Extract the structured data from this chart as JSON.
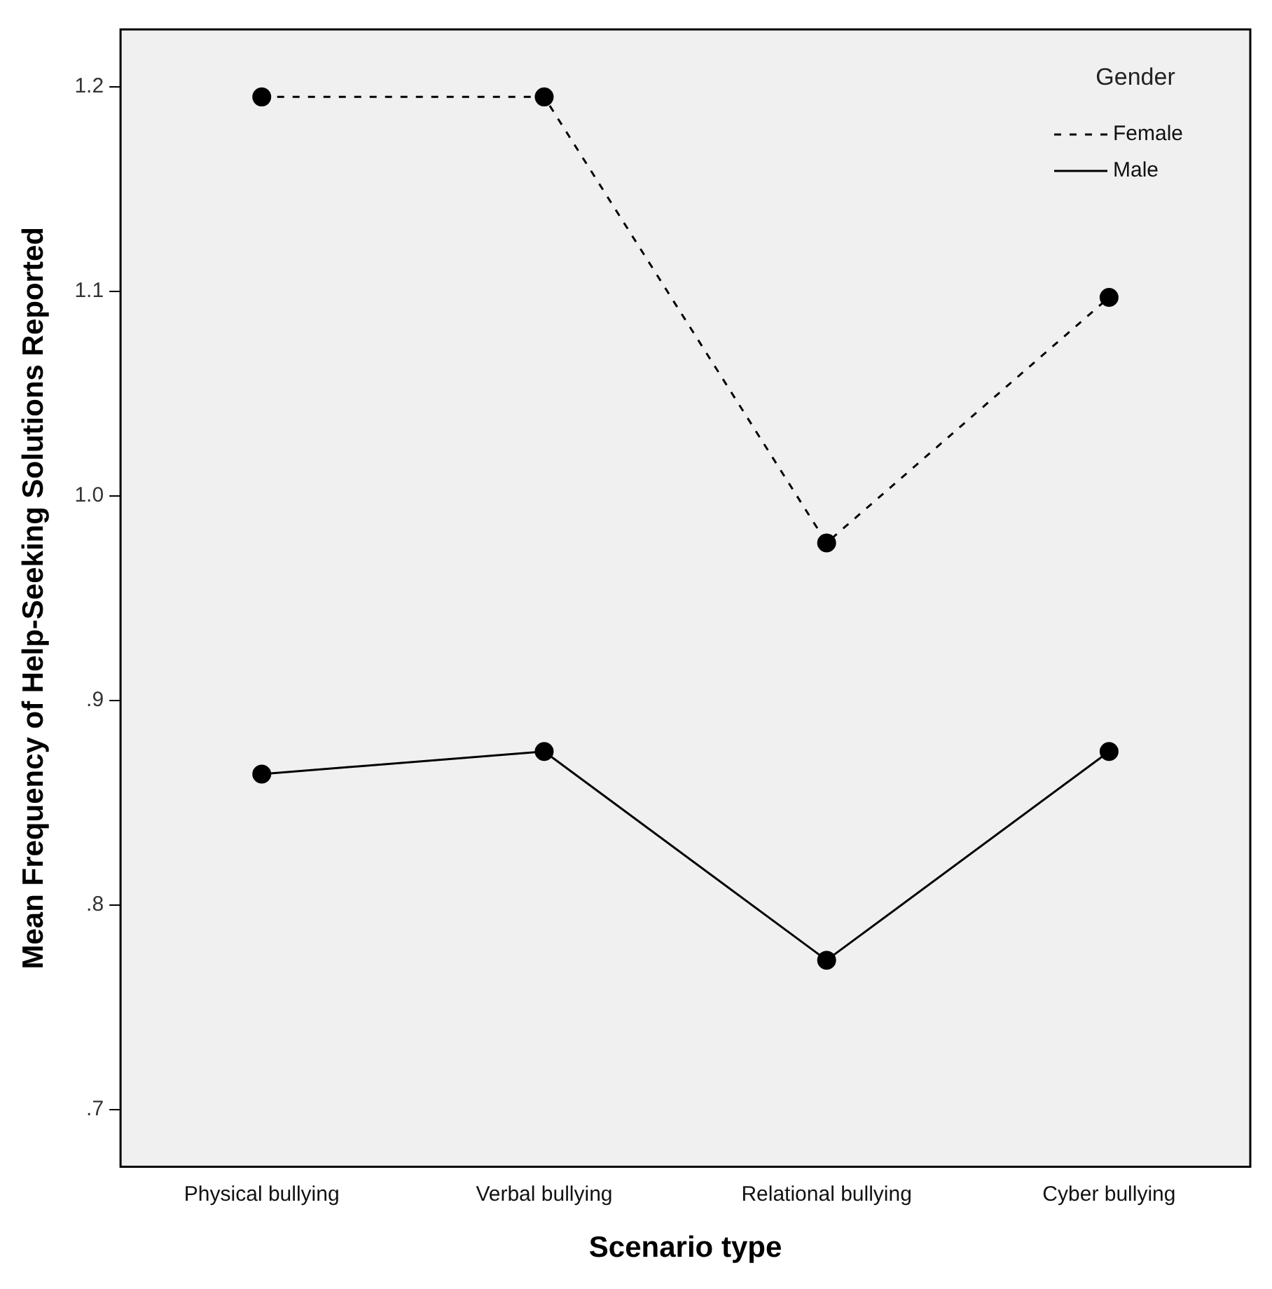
{
  "chart_data": {
    "type": "line",
    "xlabel": "Scenario type",
    "ylabel": "Mean Frequency of Help-Seeking Solutions Reported",
    "legend_title": "Gender",
    "categories": [
      "Physical bullying",
      "Verbal bullying",
      "Relational bullying",
      "Cyber bullying"
    ],
    "series": [
      {
        "name": "Female",
        "color": "#000000",
        "line_style": "dashed",
        "values": [
          1.195,
          1.195,
          0.977,
          1.097
        ]
      },
      {
        "name": "Male",
        "color": "#000000",
        "line_style": "solid",
        "values": [
          0.864,
          0.875,
          0.773,
          0.875
        ]
      }
    ],
    "ylim": [
      0.672,
      1.228
    ],
    "yticks": [
      {
        "value": 0.7,
        "label": ".7"
      },
      {
        "value": 0.8,
        "label": ".8"
      },
      {
        "value": 0.9,
        "label": ".9"
      },
      {
        "value": 1.0,
        "label": "1.0"
      },
      {
        "value": 1.1,
        "label": "1.1"
      },
      {
        "value": 1.2,
        "label": "1.2"
      }
    ],
    "grid": false,
    "legend": "top right",
    "marker": "circle"
  }
}
